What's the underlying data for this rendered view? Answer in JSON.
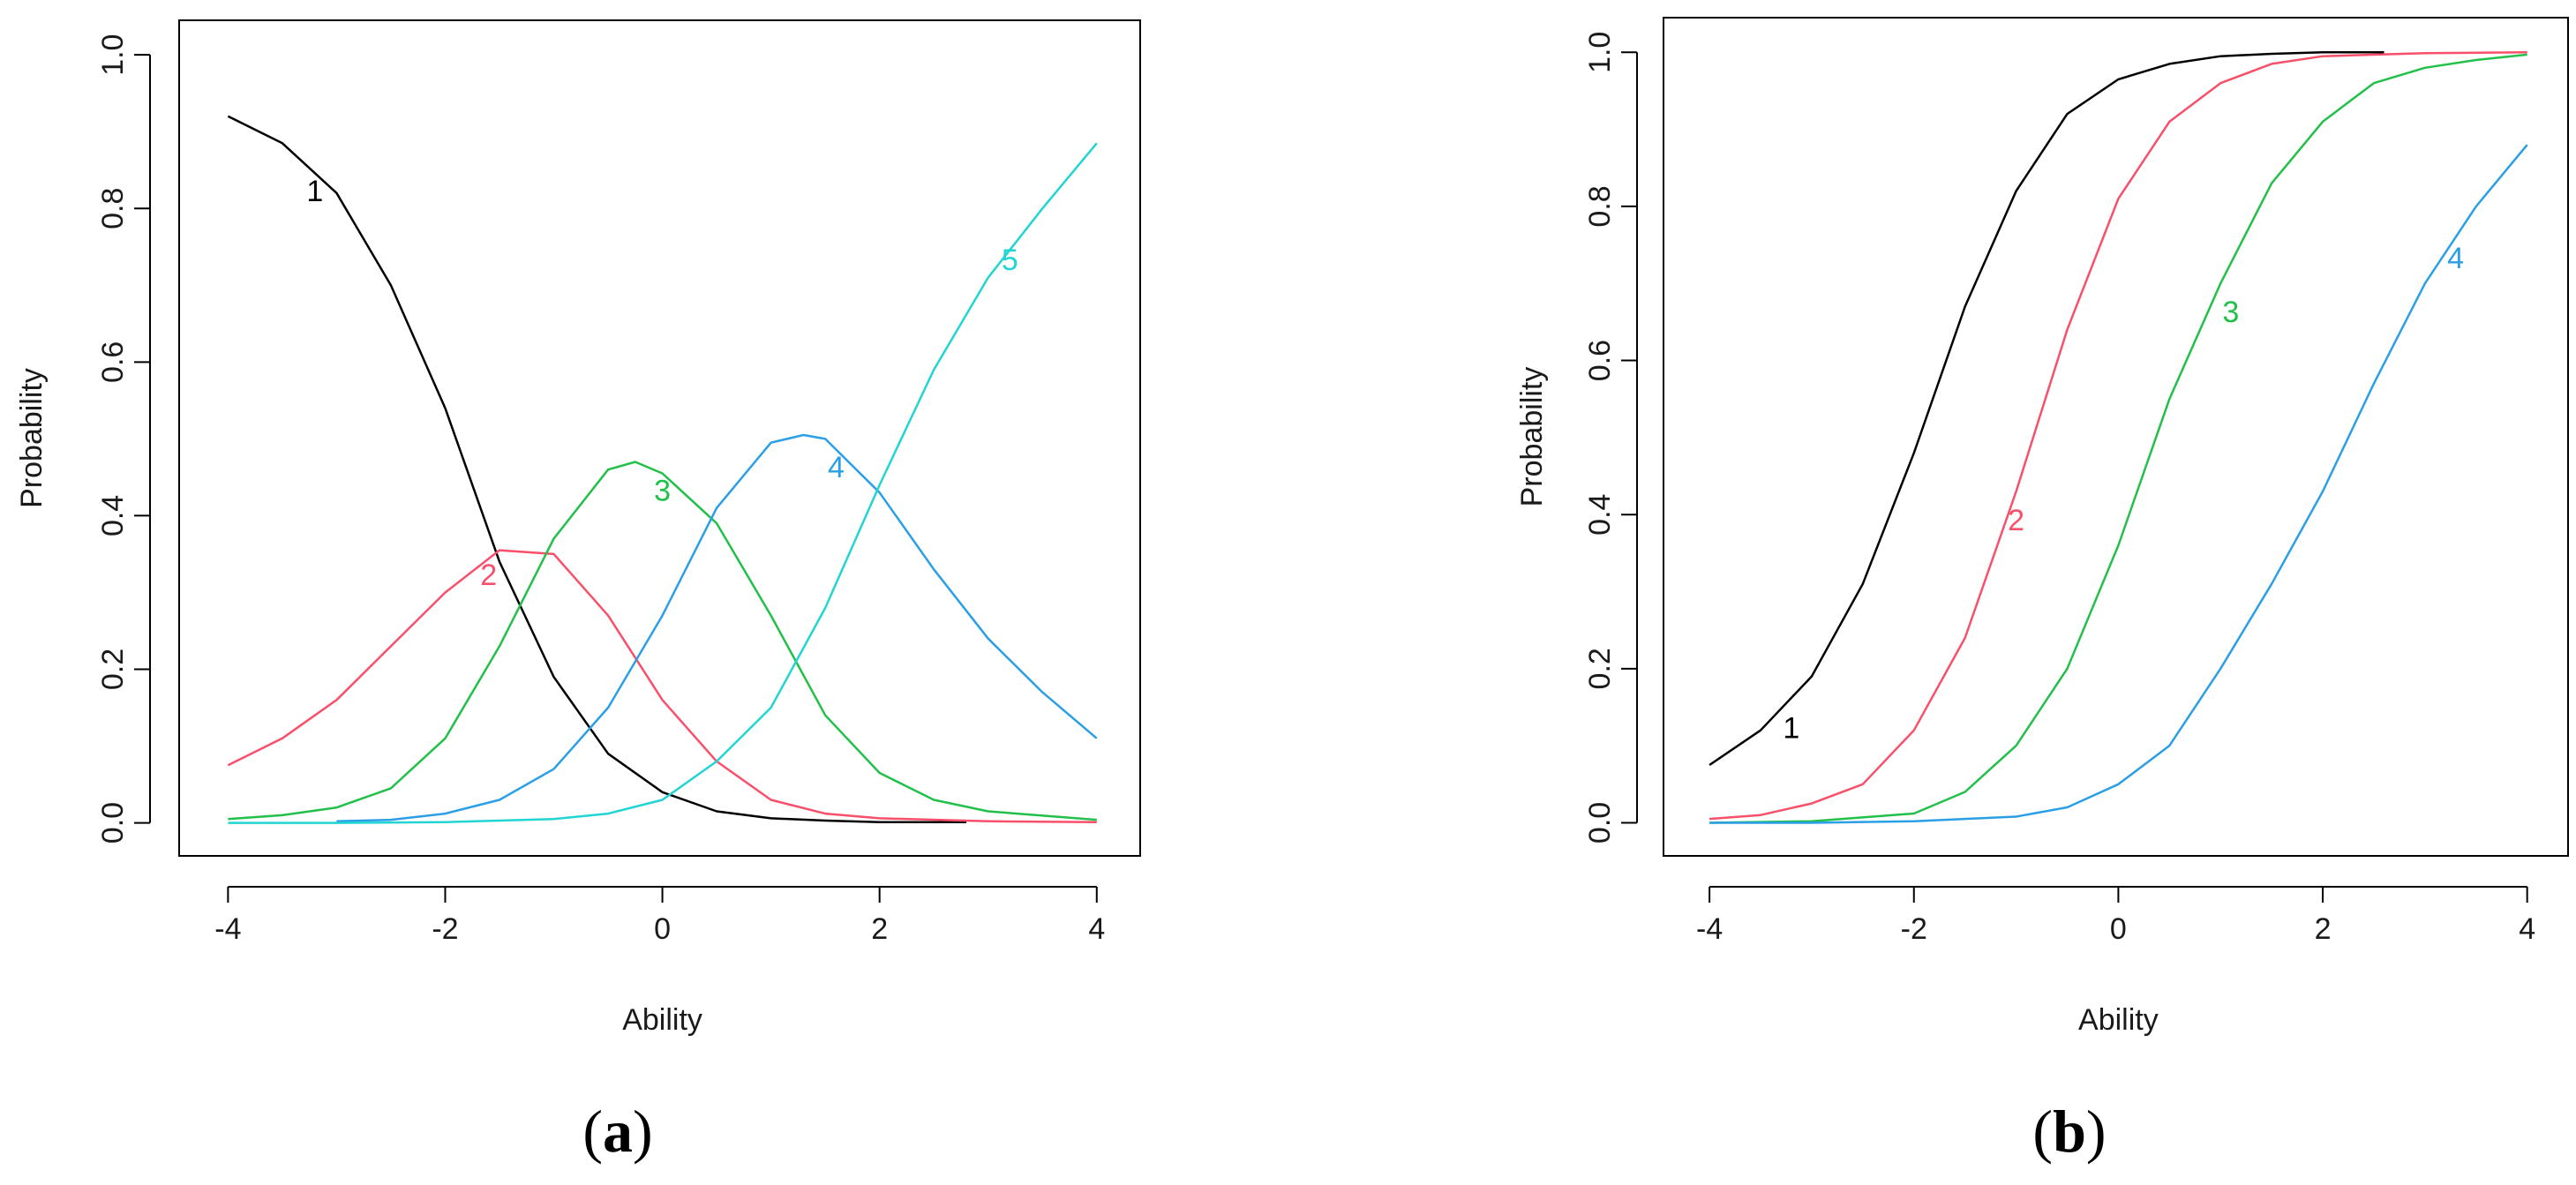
{
  "chart_data": [
    {
      "type": "line",
      "panel_label": {
        "open": "(",
        "letter": "a",
        "close": ")"
      },
      "xlabel": "Ability",
      "ylabel": "Probability",
      "xlim": [
        -4,
        4
      ],
      "ylim": [
        0,
        1
      ],
      "x_ticks": [
        "-4",
        "-2",
        "0",
        "2",
        "4"
      ],
      "y_ticks": [
        "0.0",
        "0.2",
        "0.4",
        "0.6",
        "0.8",
        "1.0"
      ],
      "grid": false,
      "series": [
        {
          "name": "1",
          "color": "#000000",
          "label_at": [
            -3.2,
            0.82
          ],
          "x": [
            -4.0,
            -3.5,
            -3.0,
            -2.5,
            -2.0,
            -1.5,
            -1.0,
            -0.5,
            0.0,
            0.5,
            1.0,
            1.5,
            2.0,
            2.5,
            2.8
          ],
          "y": [
            0.92,
            0.885,
            0.82,
            0.7,
            0.54,
            0.34,
            0.19,
            0.09,
            0.04,
            0.015,
            0.006,
            0.003,
            0.001,
            0.001,
            0.001
          ]
        },
        {
          "name": "2",
          "color": "#F8506A",
          "label_at": [
            -1.6,
            0.32
          ],
          "x": [
            -4.0,
            -3.5,
            -3.0,
            -2.5,
            -2.0,
            -1.5,
            -1.0,
            -0.5,
            0.0,
            0.5,
            1.0,
            1.5,
            2.0,
            3.0,
            4.0
          ],
          "y": [
            0.075,
            0.11,
            0.16,
            0.23,
            0.3,
            0.355,
            0.35,
            0.27,
            0.16,
            0.08,
            0.03,
            0.012,
            0.006,
            0.002,
            0.001
          ]
        },
        {
          "name": "3",
          "color": "#22C04A",
          "label_at": [
            0.0,
            0.43
          ],
          "x": [
            -4.0,
            -3.5,
            -3.0,
            -2.5,
            -2.0,
            -1.5,
            -1.0,
            -0.5,
            -0.25,
            0.0,
            0.5,
            1.0,
            1.5,
            2.0,
            2.5,
            3.0,
            4.0
          ],
          "y": [
            0.005,
            0.01,
            0.02,
            0.045,
            0.11,
            0.23,
            0.37,
            0.46,
            0.47,
            0.455,
            0.39,
            0.27,
            0.14,
            0.065,
            0.03,
            0.015,
            0.004
          ]
        },
        {
          "name": "4",
          "color": "#2B9FE6",
          "label_at": [
            1.6,
            0.46
          ],
          "x": [
            -3.0,
            -2.5,
            -2.0,
            -1.5,
            -1.0,
            -0.5,
            0.0,
            0.5,
            1.0,
            1.3,
            1.5,
            2.0,
            2.5,
            3.0,
            3.5,
            4.0
          ],
          "y": [
            0.002,
            0.004,
            0.012,
            0.03,
            0.07,
            0.15,
            0.27,
            0.41,
            0.495,
            0.505,
            0.5,
            0.43,
            0.33,
            0.24,
            0.17,
            0.11
          ]
        },
        {
          "name": "5",
          "color": "#22D4D4",
          "label_at": [
            3.2,
            0.73
          ],
          "x": [
            -4.0,
            -3.0,
            -2.0,
            -1.0,
            -0.5,
            0.0,
            0.5,
            1.0,
            1.5,
            2.0,
            2.5,
            3.0,
            3.5,
            4.0
          ],
          "y": [
            0.0,
            0.0,
            0.001,
            0.005,
            0.012,
            0.03,
            0.08,
            0.15,
            0.28,
            0.44,
            0.59,
            0.71,
            0.8,
            0.885
          ]
        }
      ]
    },
    {
      "type": "line",
      "panel_label": {
        "open": "(",
        "letter": "b",
        "close": ")"
      },
      "xlabel": "Ability",
      "ylabel": "Probability",
      "xlim": [
        -4,
        4
      ],
      "ylim": [
        0,
        1
      ],
      "x_ticks": [
        "-4",
        "-2",
        "0",
        "2",
        "4"
      ],
      "y_ticks": [
        "0.0",
        "0.2",
        "0.4",
        "0.6",
        "0.8",
        "1.0"
      ],
      "grid": false,
      "series": [
        {
          "name": "1",
          "color": "#000000",
          "label_at": [
            -3.2,
            0.12
          ],
          "x": [
            -4.0,
            -3.5,
            -3.0,
            -2.5,
            -2.0,
            -1.5,
            -1.0,
            -0.5,
            0.0,
            0.5,
            1.0,
            1.5,
            2.0,
            2.6
          ],
          "y": [
            0.075,
            0.12,
            0.19,
            0.31,
            0.48,
            0.67,
            0.82,
            0.92,
            0.965,
            0.985,
            0.995,
            0.998,
            1.0,
            1.0
          ]
        },
        {
          "name": "2",
          "color": "#F8506A",
          "label_at": [
            -1.0,
            0.39
          ],
          "x": [
            -4.0,
            -3.5,
            -3.0,
            -2.5,
            -2.0,
            -1.5,
            -1.0,
            -0.5,
            0.0,
            0.5,
            1.0,
            1.5,
            2.0,
            3.0,
            4.0
          ],
          "y": [
            0.005,
            0.01,
            0.025,
            0.05,
            0.12,
            0.24,
            0.43,
            0.64,
            0.81,
            0.91,
            0.96,
            0.985,
            0.995,
            0.999,
            1.0
          ]
        },
        {
          "name": "3",
          "color": "#22C04A",
          "label_at": [
            1.1,
            0.66
          ],
          "x": [
            -4.0,
            -3.0,
            -2.0,
            -1.5,
            -1.0,
            -0.5,
            0.0,
            0.5,
            1.0,
            1.5,
            2.0,
            2.5,
            3.0,
            3.5,
            4.0
          ],
          "y": [
            0.0,
            0.002,
            0.012,
            0.04,
            0.1,
            0.2,
            0.36,
            0.55,
            0.7,
            0.83,
            0.91,
            0.96,
            0.98,
            0.99,
            0.997
          ]
        },
        {
          "name": "4",
          "color": "#2B9FE6",
          "label_at": [
            3.3,
            0.73
          ],
          "x": [
            -4.0,
            -3.0,
            -2.0,
            -1.0,
            -0.5,
            0.0,
            0.5,
            1.0,
            1.5,
            2.0,
            2.5,
            3.0,
            3.5,
            4.0
          ],
          "y": [
            0.0,
            0.0,
            0.002,
            0.008,
            0.02,
            0.05,
            0.1,
            0.2,
            0.31,
            0.43,
            0.57,
            0.7,
            0.8,
            0.88
          ]
        }
      ]
    }
  ]
}
